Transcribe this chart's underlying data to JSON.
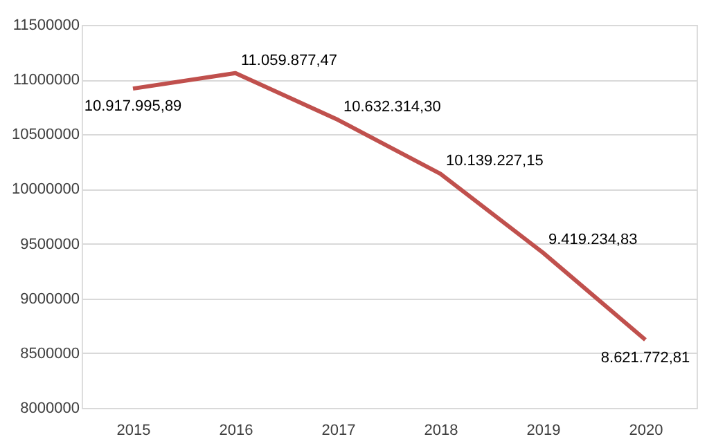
{
  "chart_data": {
    "type": "line",
    "categories": [
      "2015",
      "2016",
      "2017",
      "2018",
      "2019",
      "2020"
    ],
    "series": [
      {
        "color": "#c0504d",
        "values": [
          10917995.89,
          11059877.47,
          10632314.3,
          10139227.15,
          9419234.83,
          8621772.81
        ],
        "value_labels": [
          "10.917.995,89",
          "11.059.877,47",
          "10.632.314,30",
          "10.139.227,15",
          "9.419.234,83",
          "8.621.772,81"
        ]
      }
    ],
    "ylim": [
      8000000,
      11500000
    ],
    "yticks": [
      8000000,
      8500000,
      9000000,
      9500000,
      10000000,
      10500000,
      11000000,
      11500000
    ],
    "grid": "y",
    "marker": "none",
    "line_style": "solid",
    "legend": false
  }
}
